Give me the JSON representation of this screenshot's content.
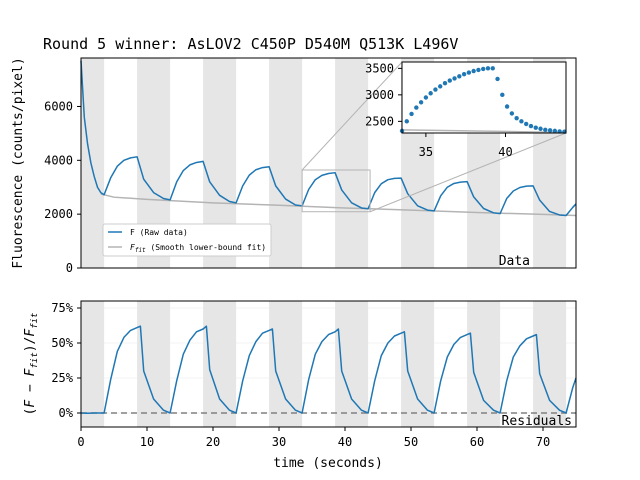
{
  "figure": {
    "title": "Round 5 winner: AsLOV2 C450P D540M Q513K L496V"
  },
  "colors": {
    "raw": "#1f77b4",
    "fit": "#b4b4b4",
    "shade": "#e6e6e6",
    "dashed": "#808080"
  },
  "chart_data": [
    {
      "name": "top",
      "type": "line",
      "ylabel": "Fluorescence (counts/pixel)",
      "xlim": [
        0,
        75
      ],
      "ylim": [
        0,
        7800
      ],
      "yticks": [
        0,
        2000,
        4000,
        6000
      ],
      "ytick_labels": [
        "0",
        "2000",
        "4000",
        "6000"
      ],
      "annotation": "Data",
      "shaded_intervals": [
        [
          0,
          3.5
        ],
        [
          8.5,
          13.5
        ],
        [
          18.5,
          23.5
        ],
        [
          28.5,
          33.5
        ],
        [
          38.5,
          43.5
        ],
        [
          48.5,
          53.5
        ],
        [
          58.5,
          63.5
        ],
        [
          68.5,
          73.5
        ]
      ],
      "legend": [
        {
          "label": "F  (Raw data)"
        },
        {
          "label": "F_fit (Smooth lower-bound fit)",
          "prefix": "F",
          "sub": "fit",
          "suffix": " (Smooth lower-bound fit)"
        }
      ],
      "series": [
        {
          "name": "F",
          "x": [
            0,
            0.5,
            1,
            1.5,
            2,
            2.5,
            3,
            3.5,
            4.5,
            5.5,
            6.5,
            7.5,
            8.5,
            9.5,
            11,
            12.5,
            13.5,
            14.5,
            15.5,
            16.5,
            17.5,
            18.5,
            19.5,
            21,
            22.5,
            23.5,
            24.5,
            25.5,
            26.5,
            27.5,
            28.5,
            29.5,
            31,
            32.5,
            33.5,
            34.5,
            35.5,
            36.5,
            37.5,
            38.5,
            39.5,
            41,
            42.5,
            43.5,
            44.5,
            45.5,
            46.5,
            47.5,
            48.5,
            49.5,
            51,
            52.5,
            53.5,
            54.5,
            55.5,
            56.5,
            57.5,
            58.5,
            59.5,
            61,
            62.5,
            63.5,
            64.5,
            65.5,
            66.5,
            67.5,
            68.5,
            69.5,
            71,
            72.5,
            73.5,
            74.5,
            75
          ],
          "y": [
            7700,
            5600,
            4600,
            3900,
            3400,
            3000,
            2800,
            2720,
            3350,
            3780,
            4000,
            4090,
            4130,
            3300,
            2800,
            2580,
            2530,
            3200,
            3620,
            3830,
            3920,
            3960,
            3200,
            2700,
            2470,
            2420,
            3050,
            3450,
            3650,
            3730,
            3760,
            3050,
            2560,
            2340,
            2310,
            2920,
            3280,
            3440,
            3510,
            3540,
            2900,
            2420,
            2230,
            2200,
            2800,
            3130,
            3280,
            3330,
            3340,
            2760,
            2310,
            2150,
            2120,
            2680,
            3000,
            3140,
            3190,
            3210,
            2640,
            2210,
            2050,
            2020,
            2580,
            2860,
            2990,
            3040,
            3050,
            2520,
            2100,
            1970,
            1950,
            2250,
            2380
          ]
        },
        {
          "name": "F_fit",
          "x": [
            3,
            5,
            10,
            20,
            30,
            40,
            50,
            60,
            70,
            75
          ],
          "y": [
            2750,
            2630,
            2550,
            2420,
            2330,
            2230,
            2150,
            2060,
            1990,
            1950
          ]
        }
      ]
    },
    {
      "name": "inset",
      "type": "scatter",
      "xlim": [
        33.5,
        43.8
      ],
      "ylim": [
        2280,
        3620
      ],
      "xticks": [
        35,
        40
      ],
      "xtick_labels": [
        "35",
        "40"
      ],
      "yticks": [
        2500,
        3000,
        3500
      ],
      "ytick_labels": [
        "2500",
        "3000",
        "3500"
      ],
      "points_x": [
        33.5,
        33.8,
        34.1,
        34.4,
        34.7,
        35.0,
        35.3,
        35.6,
        35.9,
        36.2,
        36.5,
        36.8,
        37.1,
        37.4,
        37.7,
        38.0,
        38.3,
        38.6,
        38.9,
        39.2,
        39.5,
        39.8,
        40.1,
        40.4,
        40.7,
        41.0,
        41.3,
        41.6,
        41.9,
        42.2,
        42.5,
        42.8,
        43.1,
        43.4,
        43.7
      ],
      "points_y": [
        2320,
        2500,
        2640,
        2760,
        2860,
        2950,
        3030,
        3100,
        3160,
        3220,
        3270,
        3310,
        3350,
        3390,
        3420,
        3450,
        3470,
        3490,
        3500,
        3500,
        3300,
        3000,
        2780,
        2650,
        2560,
        2500,
        2450,
        2410,
        2380,
        2360,
        2340,
        2330,
        2320,
        2310,
        2305
      ],
      "fit_x": [
        33.5,
        43.8
      ],
      "fit_y": [
        2340,
        2290
      ],
      "zoom_box": {
        "x": [
          33.5,
          43.8
        ],
        "y": [
          2090,
          3640
        ]
      }
    },
    {
      "name": "bottom",
      "type": "line",
      "ylabel": "(F - F_fit)/F_fit",
      "xlabel": "time (seconds)",
      "xlim": [
        0,
        75
      ],
      "ylim": [
        -0.1,
        0.8
      ],
      "xticks": [
        0,
        10,
        20,
        30,
        40,
        50,
        60,
        70
      ],
      "xtick_labels": [
        "0",
        "10",
        "20",
        "30",
        "40",
        "50",
        "60",
        "70"
      ],
      "yticks": [
        0,
        0.25,
        0.5,
        0.75
      ],
      "ytick_labels": [
        "0%",
        "25%",
        "50%",
        "75%"
      ],
      "annotation": "Residuals",
      "shaded_intervals": [
        [
          0,
          3.5
        ],
        [
          8.5,
          13.5
        ],
        [
          18.5,
          23.5
        ],
        [
          28.5,
          33.5
        ],
        [
          38.5,
          43.5
        ],
        [
          48.5,
          53.5
        ],
        [
          58.5,
          63.5
        ],
        [
          68.5,
          73.5
        ]
      ],
      "series": [
        {
          "name": "residual",
          "x": [
            0,
            1,
            2,
            3,
            3.5,
            4.5,
            5.5,
            6.5,
            7.5,
            8.5,
            9,
            9.5,
            11,
            12.5,
            13.5,
            14.5,
            15.5,
            16.5,
            17.5,
            18.5,
            19,
            19.5,
            21,
            22.5,
            23.5,
            24.5,
            25.5,
            26.5,
            27.5,
            28.5,
            29,
            29.5,
            31,
            32.5,
            33.5,
            34.5,
            35.5,
            36.5,
            37.5,
            38.5,
            39,
            39.5,
            41,
            42.5,
            43.5,
            44.5,
            45.5,
            46.5,
            47.5,
            48.5,
            49,
            49.5,
            51,
            52.5,
            53.5,
            54.5,
            55.5,
            56.5,
            57.5,
            58.5,
            59,
            59.5,
            61,
            62.5,
            63.5,
            64.5,
            65.5,
            66.5,
            67.5,
            68.5,
            69,
            69.5,
            71,
            72.5,
            73.5,
            74.5,
            75
          ],
          "y": [
            0,
            -0.002,
            0,
            0,
            0,
            0.24,
            0.44,
            0.54,
            0.59,
            0.61,
            0.62,
            0.3,
            0.1,
            0.02,
            0,
            0.23,
            0.42,
            0.52,
            0.58,
            0.6,
            0.62,
            0.31,
            0.1,
            0.02,
            0,
            0.23,
            0.41,
            0.51,
            0.57,
            0.59,
            0.6,
            0.3,
            0.1,
            0.02,
            0,
            0.24,
            0.42,
            0.51,
            0.56,
            0.58,
            0.6,
            0.3,
            0.1,
            0.02,
            0,
            0.23,
            0.41,
            0.5,
            0.55,
            0.57,
            0.58,
            0.3,
            0.1,
            0.02,
            0,
            0.23,
            0.4,
            0.49,
            0.54,
            0.56,
            0.57,
            0.29,
            0.09,
            0.02,
            0,
            0.23,
            0.4,
            0.48,
            0.53,
            0.55,
            0.56,
            0.28,
            0.09,
            0.02,
            0,
            0.18,
            0.25
          ]
        }
      ]
    }
  ]
}
